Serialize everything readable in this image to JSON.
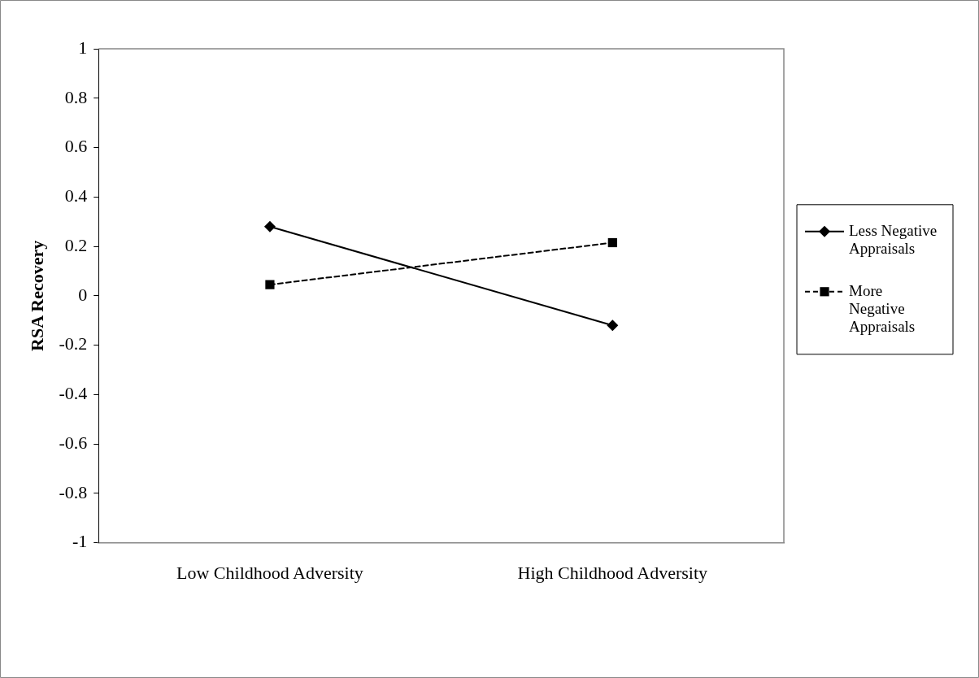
{
  "chart_data": {
    "type": "line",
    "ylabel": "RSA Recovery",
    "categories": [
      "Low Childhood Adversity",
      "High Childhood Adversity"
    ],
    "series": [
      {
        "name": "Less Negative Appraisals",
        "color": "#000000",
        "values": [
          0.28,
          -0.12
        ],
        "marker": "diamond",
        "line_style": "solid"
      },
      {
        "name": "More Negative Appraisals",
        "color": "#000000",
        "values": [
          0.045,
          0.215
        ],
        "marker": "square",
        "line_style": "dashed"
      }
    ],
    "ylim": [
      -1,
      1
    ],
    "yticks": [
      -1,
      -0.8,
      -0.6,
      -0.4,
      -0.2,
      0,
      0.2,
      0.4,
      0.6,
      0.8,
      1
    ],
    "grid": false,
    "legend": "right"
  }
}
